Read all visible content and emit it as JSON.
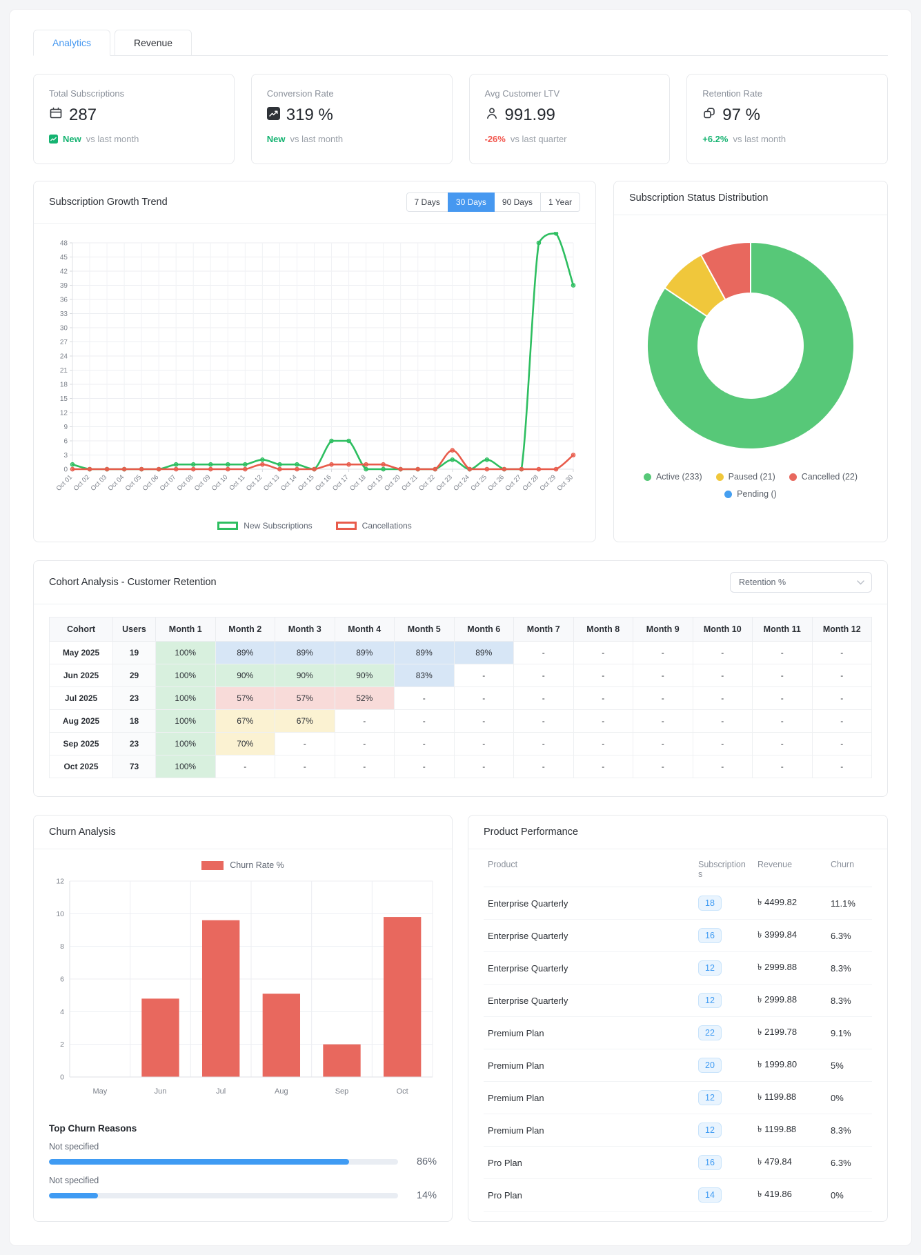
{
  "tabs": [
    {
      "label": "Analytics",
      "active": true
    },
    {
      "label": "Revenue",
      "active": false
    }
  ],
  "kpis": [
    {
      "label": "Total Subscriptions",
      "icon": "calendar-icon",
      "value": "287",
      "change": "New",
      "change_tone": "green",
      "compare": "vs last month"
    },
    {
      "label": "Conversion Rate",
      "icon": "trend-chart-icon",
      "value": "319 %",
      "change": "New",
      "change_tone": "green",
      "compare": "vs last month"
    },
    {
      "label": "Avg Customer LTV",
      "icon": "person-icon",
      "value": "991.99",
      "change": "-26%",
      "change_tone": "red",
      "compare": "vs last quarter"
    },
    {
      "label": "Retention Rate",
      "icon": "link-icon",
      "value": "97 %",
      "change": "+6.2%",
      "change_tone": "green",
      "compare": "vs last month"
    }
  ],
  "growth": {
    "title": "Subscription Growth Trend",
    "ranges": [
      "7 Days",
      "30 Days",
      "90 Days",
      "1 Year"
    ],
    "active_range": "30 Days"
  },
  "donut": {
    "title": "Subscription Status Distribution"
  },
  "cohort": {
    "title": "Cohort Analysis - Customer Retention",
    "dropdown": "Retention %",
    "headers": [
      "Cohort",
      "Users",
      "Month 1",
      "Month 2",
      "Month 3",
      "Month 4",
      "Month 5",
      "Month 6",
      "Month 7",
      "Month 8",
      "Month 9",
      "Month 10",
      "Month 11",
      "Month 12"
    ],
    "rows": [
      {
        "cohort": "May 2025",
        "users": "19",
        "cells": [
          {
            "v": "100%",
            "c": "green"
          },
          {
            "v": "89%",
            "c": "blue"
          },
          {
            "v": "89%",
            "c": "blue"
          },
          {
            "v": "89%",
            "c": "blue"
          },
          {
            "v": "89%",
            "c": "blue"
          },
          {
            "v": "89%",
            "c": "blue"
          },
          {
            "v": "-"
          },
          {
            "v": "-"
          },
          {
            "v": "-"
          },
          {
            "v": "-"
          },
          {
            "v": "-"
          },
          {
            "v": "-"
          }
        ]
      },
      {
        "cohort": "Jun 2025",
        "users": "29",
        "cells": [
          {
            "v": "100%",
            "c": "green"
          },
          {
            "v": "90%",
            "c": "green"
          },
          {
            "v": "90%",
            "c": "green"
          },
          {
            "v": "90%",
            "c": "green"
          },
          {
            "v": "83%",
            "c": "blue"
          },
          {
            "v": "-"
          },
          {
            "v": "-"
          },
          {
            "v": "-"
          },
          {
            "v": "-"
          },
          {
            "v": "-"
          },
          {
            "v": "-"
          },
          {
            "v": "-"
          }
        ]
      },
      {
        "cohort": "Jul 2025",
        "users": "23",
        "cells": [
          {
            "v": "100%",
            "c": "green"
          },
          {
            "v": "57%",
            "c": "red"
          },
          {
            "v": "57%",
            "c": "red"
          },
          {
            "v": "52%",
            "c": "red"
          },
          {
            "v": "-"
          },
          {
            "v": "-"
          },
          {
            "v": "-"
          },
          {
            "v": "-"
          },
          {
            "v": "-"
          },
          {
            "v": "-"
          },
          {
            "v": "-"
          },
          {
            "v": "-"
          }
        ]
      },
      {
        "cohort": "Aug 2025",
        "users": "18",
        "cells": [
          {
            "v": "100%",
            "c": "green"
          },
          {
            "v": "67%",
            "c": "yellow"
          },
          {
            "v": "67%",
            "c": "yellow"
          },
          {
            "v": "-"
          },
          {
            "v": "-"
          },
          {
            "v": "-"
          },
          {
            "v": "-"
          },
          {
            "v": "-"
          },
          {
            "v": "-"
          },
          {
            "v": "-"
          },
          {
            "v": "-"
          },
          {
            "v": "-"
          }
        ]
      },
      {
        "cohort": "Sep 2025",
        "users": "23",
        "cells": [
          {
            "v": "100%",
            "c": "green"
          },
          {
            "v": "70%",
            "c": "yellow"
          },
          {
            "v": "-"
          },
          {
            "v": "-"
          },
          {
            "v": "-"
          },
          {
            "v": "-"
          },
          {
            "v": "-"
          },
          {
            "v": "-"
          },
          {
            "v": "-"
          },
          {
            "v": "-"
          },
          {
            "v": "-"
          },
          {
            "v": "-"
          }
        ]
      },
      {
        "cohort": "Oct 2025",
        "users": "73",
        "cells": [
          {
            "v": "100%",
            "c": "green"
          },
          {
            "v": "-"
          },
          {
            "v": "-"
          },
          {
            "v": "-"
          },
          {
            "v": "-"
          },
          {
            "v": "-"
          },
          {
            "v": "-"
          },
          {
            "v": "-"
          },
          {
            "v": "-"
          },
          {
            "v": "-"
          },
          {
            "v": "-"
          },
          {
            "v": "-"
          }
        ]
      }
    ]
  },
  "churn": {
    "title": "Churn Analysis",
    "reasons_title": "Top Churn Reasons",
    "reasons": [
      {
        "label": "Not specified",
        "pct": 86,
        "pct_label": "86%"
      },
      {
        "label": "Not specified",
        "pct": 14,
        "pct_label": "14%"
      }
    ]
  },
  "products": {
    "title": "Product Performance",
    "headers": [
      "Product",
      "Subscriptions",
      "Revenue",
      "Churn"
    ],
    "rows": [
      {
        "product": "Enterprise Quarterly",
        "subscriptions": "18",
        "revenue": "৳ 4499.82",
        "churn": "11.1%",
        "churn_tone": "red"
      },
      {
        "product": "Enterprise Quarterly",
        "subscriptions": "16",
        "revenue": "৳ 3999.84",
        "churn": "6.3%",
        "churn_tone": "red"
      },
      {
        "product": "Enterprise Quarterly",
        "subscriptions": "12",
        "revenue": "৳ 2999.88",
        "churn": "8.3%",
        "churn_tone": "red"
      },
      {
        "product": "Enterprise Quarterly",
        "subscriptions": "12",
        "revenue": "৳ 2999.88",
        "churn": "8.3%",
        "churn_tone": "red"
      },
      {
        "product": "Premium Plan",
        "subscriptions": "22",
        "revenue": "৳ 2199.78",
        "churn": "9.1%",
        "churn_tone": "red"
      },
      {
        "product": "Premium Plan",
        "subscriptions": "20",
        "revenue": "৳ 1999.80",
        "churn": "5%",
        "churn_tone": "dark"
      },
      {
        "product": "Premium Plan",
        "subscriptions": "12",
        "revenue": "৳ 1199.88",
        "churn": "0%",
        "churn_tone": "dark"
      },
      {
        "product": "Premium Plan",
        "subscriptions": "12",
        "revenue": "৳ 1199.88",
        "churn": "8.3%",
        "churn_tone": "red"
      },
      {
        "product": "Pro Plan",
        "subscriptions": "16",
        "revenue": "৳ 479.84",
        "churn": "6.3%",
        "churn_tone": "red"
      },
      {
        "product": "Pro Plan",
        "subscriptions": "14",
        "revenue": "৳ 419.86",
        "churn": "0%",
        "churn_tone": "dark"
      }
    ]
  },
  "colors": {
    "accent_blue": "#4698f0",
    "green_line": "#2dbe60",
    "red_line": "#e85b4b",
    "donut_green": "#57c878",
    "donut_yellow": "#f0c73b",
    "donut_red": "#e8685e",
    "donut_blue": "#459ff0",
    "bar_red": "#e8685e",
    "progress_blue": "#3f9bf3",
    "positive_green": "#15b371",
    "negative_red": "#f2564d"
  },
  "chart_data": [
    {
      "type": "line",
      "title": "Subscription Growth Trend",
      "x": [
        "Oct 01",
        "Oct 02",
        "Oct 03",
        "Oct 04",
        "Oct 05",
        "Oct 06",
        "Oct 07",
        "Oct 08",
        "Oct 09",
        "Oct 10",
        "Oct 11",
        "Oct 12",
        "Oct 13",
        "Oct 14",
        "Oct 15",
        "Oct 16",
        "Oct 17",
        "Oct 18",
        "Oct 19",
        "Oct 20",
        "Oct 21",
        "Oct 22",
        "Oct 23",
        "Oct 24",
        "Oct 25",
        "Oct 26",
        "Oct 27",
        "Oct 28",
        "Oct 29",
        "Oct 30"
      ],
      "ylim": [
        0,
        48
      ],
      "ytick_step": 3,
      "legend_position": "bottom",
      "grid": true,
      "series": [
        {
          "name": "New Subscriptions",
          "color": "#2dbe60",
          "values": [
            1,
            0,
            0,
            0,
            0,
            0,
            1,
            1,
            1,
            1,
            1,
            2,
            1,
            1,
            0,
            6,
            6,
            0,
            0,
            0,
            0,
            0,
            2,
            0,
            2,
            0,
            0,
            48,
            50,
            39
          ]
        },
        {
          "name": "Cancellations",
          "color": "#e85b4b",
          "values": [
            0,
            0,
            0,
            0,
            0,
            0,
            0,
            0,
            0,
            0,
            0,
            1,
            0,
            0,
            0,
            1,
            1,
            1,
            1,
            0,
            0,
            0,
            4,
            0,
            0,
            0,
            0,
            0,
            0,
            3
          ]
        }
      ]
    },
    {
      "type": "pie",
      "subtype": "donut",
      "title": "Subscription Status Distribution",
      "legend_position": "bottom",
      "slices": [
        {
          "label": "Active",
          "value": 233,
          "color": "#57c878",
          "legend": "Active (233)"
        },
        {
          "label": "Paused",
          "value": 21,
          "color": "#f0c73b",
          "legend": "Paused (21)"
        },
        {
          "label": "Cancelled",
          "value": 22,
          "color": "#e8685e",
          "legend": "Cancelled (22)"
        },
        {
          "label": "Pending",
          "value": 0,
          "color": "#459ff0",
          "legend": "Pending ()"
        }
      ]
    },
    {
      "type": "bar",
      "title": "Churn Analysis",
      "series_name": "Churn Rate %",
      "color": "#e8685e",
      "categories": [
        "May",
        "Jun",
        "Jul",
        "Aug",
        "Sep",
        "Oct"
      ],
      "values": [
        0,
        4.8,
        9.6,
        5.1,
        2,
        9.8
      ],
      "ylim": [
        0,
        12
      ],
      "ytick_step": 2,
      "legend_position": "top",
      "grid": true
    }
  ]
}
